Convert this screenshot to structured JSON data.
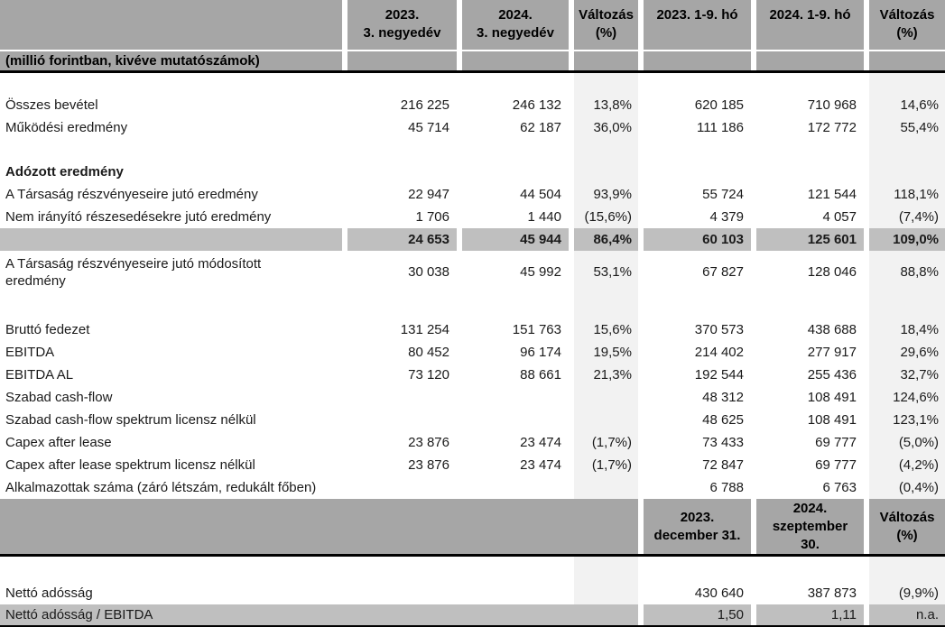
{
  "colors": {
    "header_bg": "#a6a6a6",
    "subtotal_bg": "#bfbfbf",
    "shade_bg": "#f2f2f2",
    "rule": "#000000",
    "text": "#1a1a1a"
  },
  "quarter_header": {
    "corner": "",
    "c1": "2023.\n3. negyedév",
    "c2": "2024.\n3. negyedév",
    "c3": "Változás\n(%)",
    "c4": "2023. 1-9. hó",
    "c5": "2024. 1-9. hó",
    "c6": "Változás\n(%)",
    "unit_note": "(millió forintban, kivéve mutatószámok)"
  },
  "rows": [
    {
      "variant": "spacer-sm",
      "label": "",
      "values": [
        "",
        "",
        "",
        "",
        "",
        ""
      ]
    },
    {
      "label": "Összes bevétel",
      "values": [
        "216 225",
        "246 132",
        "13,8%",
        "620 185",
        "710 968",
        "14,6%"
      ]
    },
    {
      "label": "Működési eredmény",
      "values": [
        "45 714",
        "62 187",
        "36,0%",
        "111 186",
        "172 772",
        "55,4%"
      ]
    },
    {
      "variant": "spacer",
      "label": "",
      "values": [
        "",
        "",
        "",
        "",
        "",
        ""
      ]
    },
    {
      "variant": "section",
      "label": "Adózott eredmény",
      "values": [
        "",
        "",
        "",
        "",
        "",
        ""
      ]
    },
    {
      "label": "A Társaság részvényeseire jutó eredmény",
      "values": [
        "22 947",
        "44 504",
        "93,9%",
        "55 724",
        "121 544",
        "118,1%"
      ]
    },
    {
      "label": "Nem irányító részesedésekre jutó eredmény",
      "values": [
        "1 706",
        "1 440",
        "(15,6%)",
        "4 379",
        "4 057",
        "(7,4%)"
      ]
    },
    {
      "variant": "subtotal",
      "label": "",
      "values": [
        "24 653",
        "45 944",
        "86,4%",
        "60 103",
        "125 601",
        "109,0%"
      ]
    },
    {
      "variant": "twoline",
      "label": "A Társaság részvényeseire jutó módosított eredmény",
      "values": [
        "30 038",
        "45 992",
        "53,1%",
        "67 827",
        "128 046",
        "88,8%"
      ]
    },
    {
      "variant": "spacer-lg",
      "label": "",
      "values": [
        "",
        "",
        "",
        "",
        "",
        ""
      ]
    },
    {
      "label": "Bruttó fedezet",
      "values": [
        "131 254",
        "151 763",
        "15,6%",
        "370 573",
        "438 688",
        "18,4%"
      ]
    },
    {
      "label": "EBITDA",
      "values": [
        "80 452",
        "96 174",
        "19,5%",
        "214 402",
        "277 917",
        "29,6%"
      ]
    },
    {
      "label": "EBITDA AL",
      "values": [
        "73 120",
        "88 661",
        "21,3%",
        "192 544",
        "255 436",
        "32,7%"
      ]
    },
    {
      "label": "Szabad cash-flow",
      "values": [
        "",
        "",
        "",
        "48 312",
        "108 491",
        "124,6%"
      ]
    },
    {
      "label": "Szabad cash-flow spektrum licensz nélkül",
      "values": [
        "",
        "",
        "",
        "48 625",
        "108 491",
        "123,1%"
      ]
    },
    {
      "label": "Capex after lease",
      "values": [
        "23 876",
        "23 474",
        "(1,7%)",
        "73 433",
        "69 777",
        "(5,0%)"
      ]
    },
    {
      "label": "Capex after lease spektrum licensz nélkül",
      "values": [
        "23 876",
        "23 474",
        "(1,7%)",
        "72 847",
        "69 777",
        "(4,2%)"
      ]
    },
    {
      "label": "Alkalmazottak száma (záró létszám, redukált főben)",
      "values": [
        "",
        "",
        "",
        "6 788",
        "6 763",
        "(0,4%)"
      ]
    }
  ],
  "period_header": {
    "c4": "2023.\ndecember 31.",
    "c5": "2024.\nszeptember\n30.",
    "c6": "Változás\n(%)"
  },
  "rows2": [
    {
      "variant": "spacer-lg",
      "label": "",
      "values": [
        "",
        "",
        "",
        "",
        "",
        ""
      ]
    },
    {
      "label": "Nettó adósság",
      "values": [
        "",
        "",
        "",
        "430 640",
        "387 873",
        "(9,9%)"
      ]
    },
    {
      "variant": "grayrow merged row-last",
      "label": "Nettó adósság / EBITDA",
      "values": [
        "",
        "",
        "",
        "1,50",
        "1,11",
        "n.a."
      ]
    }
  ]
}
